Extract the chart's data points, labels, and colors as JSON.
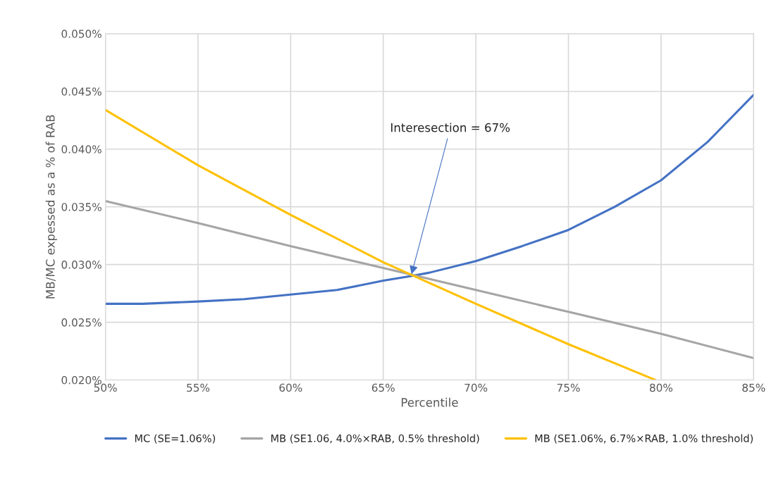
{
  "chart_data": {
    "type": "line",
    "xlabel": "Percentile",
    "ylabel": "MB/MC expessed as a % of RAB",
    "xlim": [
      50,
      85
    ],
    "xticks": [
      {
        "value": 50,
        "label": "50%"
      },
      {
        "value": 55,
        "label": "55%"
      },
      {
        "value": 60,
        "label": "60%"
      },
      {
        "value": 65,
        "label": "65%"
      },
      {
        "value": 70,
        "label": "70%"
      },
      {
        "value": 75,
        "label": "75%"
      },
      {
        "value": 80,
        "label": "80%"
      },
      {
        "value": 85,
        "label": "85%"
      }
    ],
    "ylim": [
      0.02,
      0.05
    ],
    "yticks": [
      {
        "value": 0.02,
        "label": "0.020%"
      },
      {
        "value": 0.025,
        "label": "0.025%"
      },
      {
        "value": 0.03,
        "label": "0.030%"
      },
      {
        "value": 0.035,
        "label": "0.035%"
      },
      {
        "value": 0.04,
        "label": "0.040%"
      },
      {
        "value": 0.045,
        "label": "0.045%"
      },
      {
        "value": 0.05,
        "label": "0.050%"
      }
    ],
    "grid": true,
    "legend": "bottom",
    "marker": "none",
    "line_style": "solid",
    "series": [
      {
        "name": "MC (SE=1.06%)",
        "color": "#4472c4",
        "x": [
          50,
          52,
          55,
          57.5,
          60,
          62.5,
          65,
          66.5,
          67.5,
          70,
          72.5,
          75,
          77.5,
          80,
          82.5,
          85
        ],
        "values": [
          0.0266,
          0.0266,
          0.0268,
          0.027,
          0.0274,
          0.0278,
          0.0286,
          0.029,
          0.0293,
          0.0303,
          0.0316,
          0.033,
          0.035,
          0.0373,
          0.0406,
          0.0447
        ]
      },
      {
        "name": "MB (SE1.06, 4.0%×RAB, 0.5% threshold)",
        "color": "#a5a5a5",
        "x": [
          50,
          55,
          60,
          65,
          70,
          75,
          80,
          85
        ],
        "values": [
          0.0355,
          0.0336,
          0.0316,
          0.0297,
          0.0278,
          0.0259,
          0.024,
          0.0219
        ]
      },
      {
        "name": "MB (SE1.06%, 6.7%×RAB, 1.0% threshold)",
        "color": "#ffc000",
        "x": [
          50,
          55,
          60,
          65,
          70,
          75,
          79.7
        ],
        "values": [
          0.0434,
          0.0386,
          0.0343,
          0.0302,
          0.0266,
          0.0231,
          0.02
        ]
      }
    ],
    "annotations": [
      {
        "text": "Interesection = 67%",
        "x": 66.5,
        "y": 0.029
      }
    ]
  }
}
